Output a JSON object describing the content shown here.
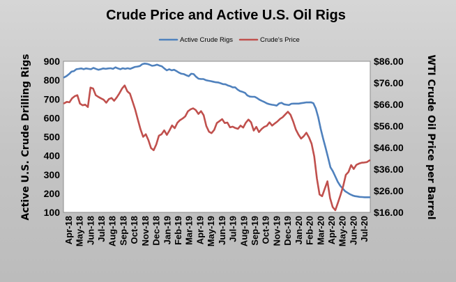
{
  "chart_data": {
    "type": "line",
    "title": "Crude Price and Active U.S. Oil Rigs",
    "ylabel": "Active U.S. Crude Drilling Rigs",
    "y2label": "WTI Crude Oil Price per Barrel",
    "ylim": [
      100,
      900
    ],
    "y2lim": [
      16,
      86
    ],
    "yticks": [
      "100",
      "200",
      "300",
      "400",
      "500",
      "600",
      "700",
      "800",
      "900"
    ],
    "y2ticks": [
      "$16.00",
      "$26.00",
      "$36.00",
      "$46.00",
      "$56.00",
      "$66.00",
      "$76.00",
      "$86.00"
    ],
    "legend_position": "top-center",
    "grid": false,
    "x_labels": [
      "Apr-18",
      "May-18",
      "Jun-18",
      "Jul-18",
      "Aug-18",
      "Sep-18",
      "Oct-18",
      "Nov-18",
      "Dec-18",
      "Jan-19",
      "Feb-19",
      "Mar-19",
      "Apr-19",
      "May-19",
      "Jun-19",
      "Jul-19",
      "Aug-19",
      "Sep-19",
      "Oct-19",
      "Nov-19",
      "Dec-19",
      "Jan-20",
      "Feb-20",
      "Mar-20",
      "Apr-20",
      "May-20",
      "Jun-20",
      "Jul-20"
    ],
    "series": [
      {
        "name": "Active Crude Rigs",
        "axis": "left",
        "color": "#4f81bd",
        "values": [
          815,
          822,
          832,
          845,
          848,
          858,
          860,
          862,
          858,
          862,
          860,
          858,
          865,
          860,
          855,
          858,
          862,
          860,
          862,
          863,
          860,
          868,
          862,
          858,
          863,
          860,
          863,
          860,
          865,
          870,
          872,
          875,
          885,
          888,
          886,
          882,
          876,
          878,
          882,
          877,
          873,
          862,
          852,
          858,
          852,
          855,
          848,
          840,
          834,
          832,
          826,
          821,
          834,
          832,
          818,
          808,
          806,
          806,
          800,
          797,
          795,
          792,
          789,
          788,
          784,
          779,
          778,
          772,
          768,
          762,
          762,
          750,
          742,
          738,
          733,
          719,
          713,
          712,
          712,
          705,
          696,
          690,
          684,
          677,
          673,
          670,
          668,
          665,
          677,
          680,
          672,
          670,
          668,
          675,
          676,
          676,
          676,
          678,
          680,
          682,
          682,
          683,
          678,
          650,
          604,
          543,
          491,
          443,
          392,
          339,
          318,
          290,
          262,
          241,
          226,
          212,
          204,
          196,
          190,
          186,
          184,
          182,
          181,
          180,
          180,
          180
        ]
      },
      {
        "name": "Crude's Price",
        "axis": "right",
        "color": "#c0504d",
        "values": [
          66.5,
          67.2,
          67.0,
          68.8,
          69.8,
          70.3,
          66.4,
          65.6,
          65.9,
          64.8,
          73.8,
          73.4,
          70.3,
          69.5,
          68.8,
          68.2,
          66.8,
          68.5,
          69.0,
          67.7,
          69.3,
          71.2,
          73.4,
          74.8,
          72.1,
          71.0,
          67.3,
          63.6,
          59.0,
          54.5,
          51.0,
          52.2,
          49.5,
          45.8,
          44.8,
          47.5,
          51.5,
          52.2,
          54.0,
          51.9,
          53.9,
          56.3,
          55.0,
          57.5,
          58.7,
          59.5,
          60.5,
          62.8,
          63.7,
          64.2,
          63.4,
          61.6,
          62.9,
          61.0,
          56.0,
          53.4,
          52.7,
          54.2,
          57.4,
          58.3,
          59.2,
          57.4,
          57.6,
          55.4,
          55.7,
          55.1,
          54.7,
          56.2,
          55.3,
          57.5,
          59.0,
          57.7,
          53.9,
          55.6,
          53.2,
          54.6,
          55.6,
          56.1,
          57.7,
          56.2,
          57.2,
          58.1,
          59.3,
          60.1,
          61.4,
          62.6,
          61.2,
          58.1,
          54.4,
          52.0,
          50.2,
          51.3,
          52.9,
          50.7,
          47.8,
          41.9,
          31.7,
          24.3,
          23.5,
          27.0,
          30.4,
          22.6,
          18.5,
          17.0,
          20.5,
          24.2,
          28.2,
          33.4,
          34.7,
          37.9,
          36.1,
          38.0,
          38.6,
          39.0,
          39.1,
          39.3,
          40.1
        ]
      }
    ]
  }
}
